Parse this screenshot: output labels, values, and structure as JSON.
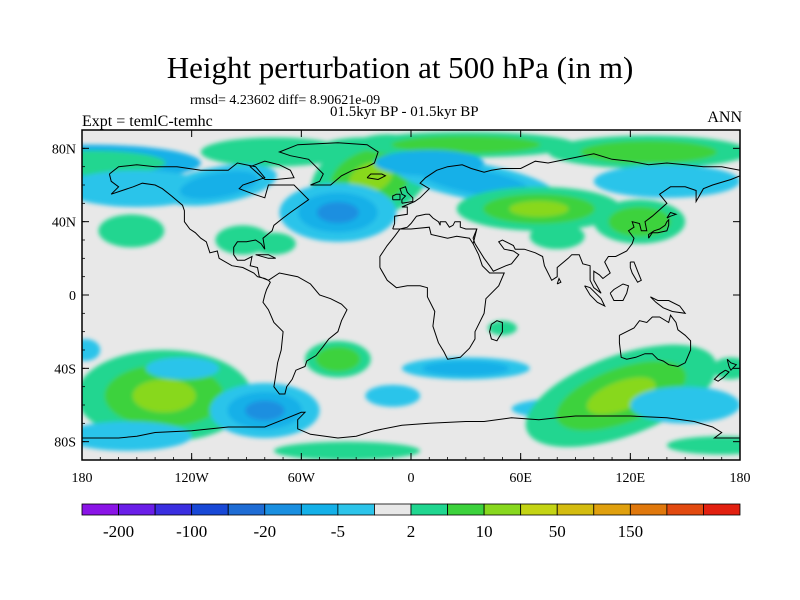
{
  "chart_data": {
    "type": "heatmap",
    "title": "Height perturbation at 500 hPa (in m)",
    "stats_text": "rmsd= 4.23602 diff= 8.90621e-09",
    "period_text": "01.5kyr BP - 01.5kyr BP",
    "left_label": "Expt = temlC-temhc",
    "right_label": "ANN",
    "x_axis": {
      "range": [
        -180,
        180
      ],
      "ticks": [
        "180",
        "120W",
        "60W",
        "0",
        "60E",
        "120E",
        "180"
      ]
    },
    "y_axis": {
      "range": [
        -90,
        90
      ],
      "ticks": [
        "80N",
        "40N",
        "0",
        "40S",
        "80S"
      ]
    },
    "colorbar": {
      "labels": [
        "-200",
        "-100",
        "-20",
        "-5",
        "2",
        "10",
        "50",
        "150"
      ],
      "colors": [
        "#8a14e6",
        "#6a1ee8",
        "#3a2ee0",
        "#1848d6",
        "#1e6cd4",
        "#1a8fe0",
        "#14b0e8",
        "#2cc4ea",
        "#e8e8e8",
        "#20d690",
        "#3cd23c",
        "#88d81e",
        "#c4d414",
        "#d4bc10",
        "#e0a00e",
        "#e0780c",
        "#e24a10",
        "#e22010"
      ]
    },
    "regions": [
      {
        "name": "north-atlantic-low",
        "lon": -42,
        "lat": 45,
        "value": -20
      },
      {
        "name": "greenland-high",
        "lon": -20,
        "lat": 68,
        "value": 10
      },
      {
        "name": "south-pacific-high",
        "lon": -135,
        "lat": -55,
        "value": 10
      },
      {
        "name": "south-atlantic-low",
        "lon": -80,
        "lat": -65,
        "value": -20
      },
      {
        "name": "south-indian-high",
        "lon": 115,
        "lat": -55,
        "value": 10
      },
      {
        "name": "east-asia-high",
        "lon": 120,
        "lat": 40,
        "value": 10
      }
    ]
  }
}
